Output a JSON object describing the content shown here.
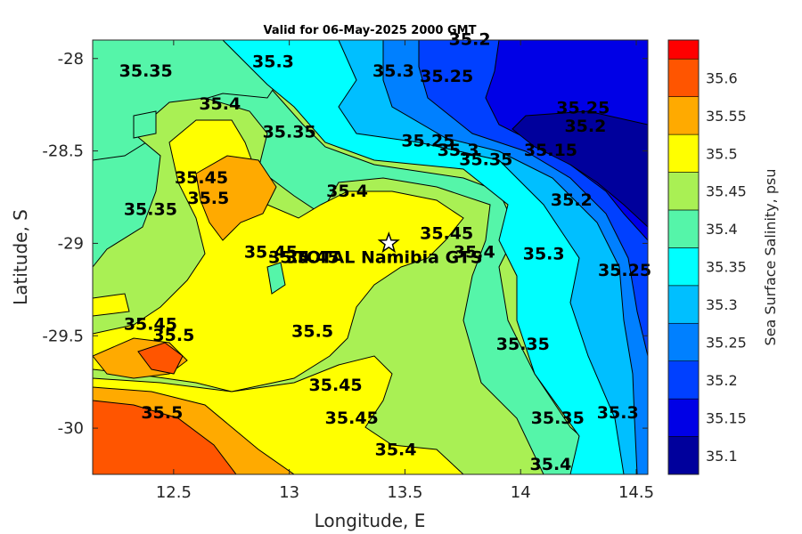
{
  "title": "Valid for 06-May-2025 2000 GMT",
  "x_axis": {
    "label": "Longitude, E",
    "ticks": [
      "12.5",
      "13",
      "13.5",
      "14",
      "14.5"
    ],
    "range": [
      12.15,
      14.55
    ]
  },
  "y_axis": {
    "label": "Latitude, S",
    "ticks": [
      "-28",
      "-28.5",
      "-29",
      "-29.5",
      "-30"
    ],
    "range": [
      -30.25,
      -27.9
    ]
  },
  "colorbar": {
    "label": "Sea Surface Salinity, psu",
    "ticks": [
      "35.1",
      "35.15",
      "35.2",
      "35.25",
      "35.3",
      "35.35",
      "35.4",
      "35.45",
      "35.5",
      "35.55",
      "35.6"
    ],
    "colors": [
      "#00009c",
      "#0000e6",
      "#0040ff",
      "#0080ff",
      "#00bfff",
      "#00ffff",
      "#55f5a9",
      "#a9f054",
      "#ffff00",
      "#ffaa00",
      "#ff5500",
      "#ff0000"
    ]
  },
  "station": {
    "name": "TOTAL Namibia GTS",
    "lon": 13.43,
    "lat": -29.0,
    "marker": "star-icon"
  },
  "contour_labels": [
    {
      "text": "35.2",
      "lon": 13.78,
      "lat": -27.9
    },
    {
      "text": "35.25",
      "lon": 13.68,
      "lat": -28.1
    },
    {
      "text": "35.3",
      "lon": 13.45,
      "lat": -28.07
    },
    {
      "text": "35.3",
      "lon": 12.93,
      "lat": -28.02
    },
    {
      "text": "35.35",
      "lon": 12.38,
      "lat": -28.07
    },
    {
      "text": "35.4",
      "lon": 12.7,
      "lat": -28.25
    },
    {
      "text": "35.35",
      "lon": 13.0,
      "lat": -28.4
    },
    {
      "text": "35.25",
      "lon": 14.27,
      "lat": -28.27
    },
    {
      "text": "35.2",
      "lon": 14.28,
      "lat": -28.37
    },
    {
      "text": "35.25",
      "lon": 13.6,
      "lat": -28.45
    },
    {
      "text": "35.3",
      "lon": 13.73,
      "lat": -28.5
    },
    {
      "text": "35.35",
      "lon": 13.85,
      "lat": -28.55
    },
    {
      "text": "35.15",
      "lon": 14.13,
      "lat": -28.5
    },
    {
      "text": "35.2",
      "lon": 14.22,
      "lat": -28.77
    },
    {
      "text": "35.4",
      "lon": 13.25,
      "lat": -28.72
    },
    {
      "text": "35.35",
      "lon": 12.4,
      "lat": -28.82
    },
    {
      "text": "35.45",
      "lon": 12.62,
      "lat": -28.65
    },
    {
      "text": "35.5",
      "lon": 12.65,
      "lat": -28.76
    },
    {
      "text": "35.45",
      "lon": 13.68,
      "lat": -28.95
    },
    {
      "text": "35.3",
      "lon": 14.1,
      "lat": -29.06
    },
    {
      "text": "35.25",
      "lon": 14.45,
      "lat": -29.15
    },
    {
      "text": "35.45",
      "lon": 12.92,
      "lat": -29.05
    },
    {
      "text": "35.4",
      "lon": 13.0,
      "lat": -29.08
    },
    {
      "text": "35.45",
      "lon": 13.1,
      "lat": -29.08
    },
    {
      "text": "35.4",
      "lon": 13.8,
      "lat": -29.05
    },
    {
      "text": "35.45",
      "lon": 12.4,
      "lat": -29.44
    },
    {
      "text": "35.5",
      "lon": 12.5,
      "lat": -29.5
    },
    {
      "text": "35.5",
      "lon": 13.1,
      "lat": -29.48
    },
    {
      "text": "35.35",
      "lon": 14.01,
      "lat": -29.55
    },
    {
      "text": "35.45",
      "lon": 13.2,
      "lat": -29.77
    },
    {
      "text": "35.45",
      "lon": 13.27,
      "lat": -29.95
    },
    {
      "text": "35.5",
      "lon": 12.45,
      "lat": -29.92
    },
    {
      "text": "35.3",
      "lon": 14.42,
      "lat": -29.92
    },
    {
      "text": "35.35",
      "lon": 14.16,
      "lat": -29.95
    },
    {
      "text": "35.4",
      "lon": 13.46,
      "lat": -30.12
    },
    {
      "text": "35.4",
      "lon": 14.13,
      "lat": -30.2
    }
  ]
}
